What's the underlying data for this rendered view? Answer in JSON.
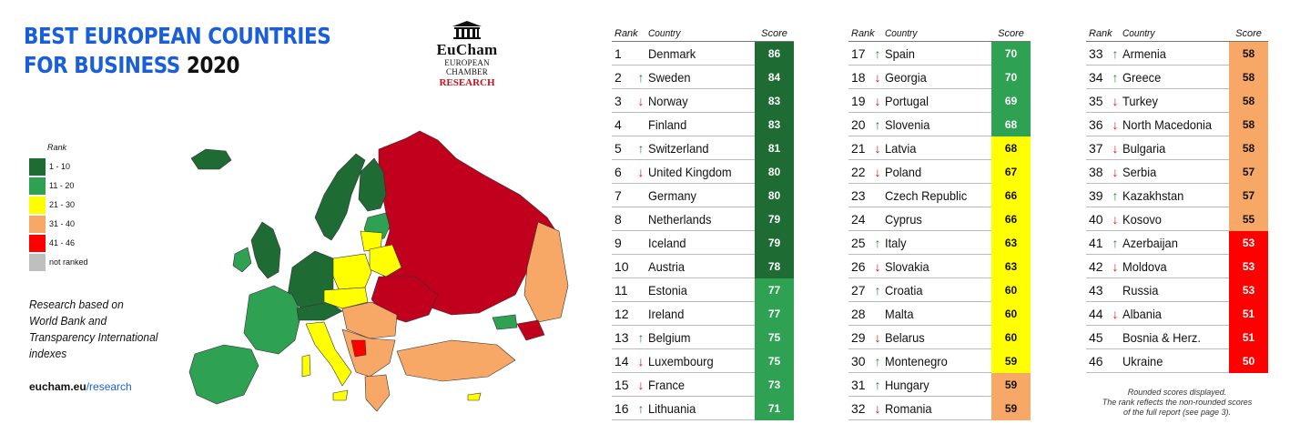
{
  "title": {
    "line1": "BEST EUROPEAN COUNTRIES",
    "line2_blue": "FOR BUSINESS ",
    "line2_year": "2020"
  },
  "logo": {
    "brand": "EuCham",
    "subtitle": "EUROPEAN CHAMBER",
    "research": "RESEARCH"
  },
  "legend": {
    "header": "Rank",
    "items": [
      {
        "label": "1 - 10",
        "color": "#1e6b33"
      },
      {
        "label": "11 - 20",
        "color": "#2fa153"
      },
      {
        "label": "21 - 30",
        "color": "#ffff00"
      },
      {
        "label": "31 - 40",
        "color": "#f7a866"
      },
      {
        "label": "41 - 46",
        "color": "#ff0000"
      },
      {
        "label": "not ranked",
        "color": "#bfbfbf"
      }
    ]
  },
  "note": {
    "lines": [
      "Research based on",
      "World Bank and",
      "Transparency International",
      "indexes"
    ]
  },
  "site": {
    "domain": "eucham.eu",
    "path": "/research"
  },
  "colors": {
    "band1": "#1e6b33",
    "band2": "#2fa153",
    "band3": "#ffff00",
    "band4": "#f7a866",
    "band5": "#ff0000",
    "russia": "#c0001c",
    "title_blue": "#1a5fd8"
  },
  "headers": {
    "rank": "Rank",
    "country": "Country",
    "score": "Score"
  },
  "tables": [
    {
      "rows": [
        {
          "rank": "1",
          "trend": "",
          "country": "Denmark",
          "score": "86",
          "band": 1
        },
        {
          "rank": "2",
          "trend": "up",
          "country": "Sweden",
          "score": "84",
          "band": 1
        },
        {
          "rank": "3",
          "trend": "down",
          "country": "Norway",
          "score": "83",
          "band": 1
        },
        {
          "rank": "4",
          "trend": "",
          "country": "Finland",
          "score": "83",
          "band": 1
        },
        {
          "rank": "5",
          "trend": "up",
          "country": "Switzerland",
          "score": "81",
          "band": 1
        },
        {
          "rank": "6",
          "trend": "down",
          "country": "United Kingdom",
          "score": "80",
          "band": 1
        },
        {
          "rank": "7",
          "trend": "",
          "country": "Germany",
          "score": "80",
          "band": 1
        },
        {
          "rank": "8",
          "trend": "",
          "country": "Netherlands",
          "score": "79",
          "band": 1
        },
        {
          "rank": "9",
          "trend": "",
          "country": "Iceland",
          "score": "79",
          "band": 1
        },
        {
          "rank": "10",
          "trend": "",
          "country": "Austria",
          "score": "78",
          "band": 1
        },
        {
          "rank": "11",
          "trend": "",
          "country": "Estonia",
          "score": "77",
          "band": 2
        },
        {
          "rank": "12",
          "trend": "",
          "country": "Ireland",
          "score": "77",
          "band": 2
        },
        {
          "rank": "13",
          "trend": "up",
          "country": "Belgium",
          "score": "75",
          "band": 2
        },
        {
          "rank": "14",
          "trend": "down",
          "country": "Luxembourg",
          "score": "75",
          "band": 2
        },
        {
          "rank": "15",
          "trend": "down",
          "country": "France",
          "score": "73",
          "band": 2
        },
        {
          "rank": "16",
          "trend": "up",
          "country": "Lithuania",
          "score": "71",
          "band": 2
        }
      ]
    },
    {
      "rows": [
        {
          "rank": "17",
          "trend": "up",
          "country": "Spain",
          "score": "70",
          "band": 2
        },
        {
          "rank": "18",
          "trend": "down",
          "country": "Georgia",
          "score": "70",
          "band": 2
        },
        {
          "rank": "19",
          "trend": "down",
          "country": "Portugal",
          "score": "69",
          "band": 2
        },
        {
          "rank": "20",
          "trend": "up",
          "country": "Slovenia",
          "score": "68",
          "band": 2
        },
        {
          "rank": "21",
          "trend": "down",
          "country": "Latvia",
          "score": "68",
          "band": 3
        },
        {
          "rank": "22",
          "trend": "down",
          "country": "Poland",
          "score": "67",
          "band": 3
        },
        {
          "rank": "23",
          "trend": "",
          "country": "Czech Republic",
          "score": "66",
          "band": 3
        },
        {
          "rank": "24",
          "trend": "",
          "country": "Cyprus",
          "score": "66",
          "band": 3
        },
        {
          "rank": "25",
          "trend": "up",
          "country": "Italy",
          "score": "63",
          "band": 3
        },
        {
          "rank": "26",
          "trend": "down",
          "country": "Slovakia",
          "score": "63",
          "band": 3
        },
        {
          "rank": "27",
          "trend": "up",
          "country": "Croatia",
          "score": "60",
          "band": 3
        },
        {
          "rank": "28",
          "trend": "",
          "country": "Malta",
          "score": "60",
          "band": 3
        },
        {
          "rank": "29",
          "trend": "down",
          "country": "Belarus",
          "score": "60",
          "band": 3
        },
        {
          "rank": "30",
          "trend": "up",
          "country": "Montenegro",
          "score": "59",
          "band": 3
        },
        {
          "rank": "31",
          "trend": "up",
          "country": "Hungary",
          "score": "59",
          "band": 4
        },
        {
          "rank": "32",
          "trend": "down",
          "country": "Romania",
          "score": "59",
          "band": 4
        }
      ]
    },
    {
      "rows": [
        {
          "rank": "33",
          "trend": "up",
          "country": "Armenia",
          "score": "58",
          "band": 4
        },
        {
          "rank": "34",
          "trend": "up",
          "country": "Greece",
          "score": "58",
          "band": 4
        },
        {
          "rank": "35",
          "trend": "down",
          "country": "Turkey",
          "score": "58",
          "band": 4
        },
        {
          "rank": "36",
          "trend": "down",
          "country": "North Macedonia",
          "score": "58",
          "band": 4
        },
        {
          "rank": "37",
          "trend": "down",
          "country": "Bulgaria",
          "score": "58",
          "band": 4
        },
        {
          "rank": "38",
          "trend": "down",
          "country": "Serbia",
          "score": "57",
          "band": 4
        },
        {
          "rank": "39",
          "trend": "up",
          "country": "Kazakhstan",
          "score": "57",
          "band": 4
        },
        {
          "rank": "40",
          "trend": "down",
          "country": "Kosovo",
          "score": "55",
          "band": 4
        },
        {
          "rank": "41",
          "trend": "up",
          "country": "Azerbaijan",
          "score": "53",
          "band": 5
        },
        {
          "rank": "42",
          "trend": "down",
          "country": "Moldova",
          "score": "53",
          "band": 5
        },
        {
          "rank": "43",
          "trend": "",
          "country": "Russia",
          "score": "53",
          "band": 5
        },
        {
          "rank": "44",
          "trend": "down",
          "country": "Albania",
          "score": "51",
          "band": 5
        },
        {
          "rank": "45",
          "trend": "",
          "country": "Bosnia & Herz.",
          "score": "51",
          "band": 5
        },
        {
          "rank": "46",
          "trend": "",
          "country": "Ukraine",
          "score": "50",
          "band": 5
        }
      ]
    }
  ],
  "footnote": {
    "lines": [
      "Rounded scores displayed.",
      "The rank reflects the non-rounded scores",
      "of the full report (see page 3)."
    ]
  }
}
